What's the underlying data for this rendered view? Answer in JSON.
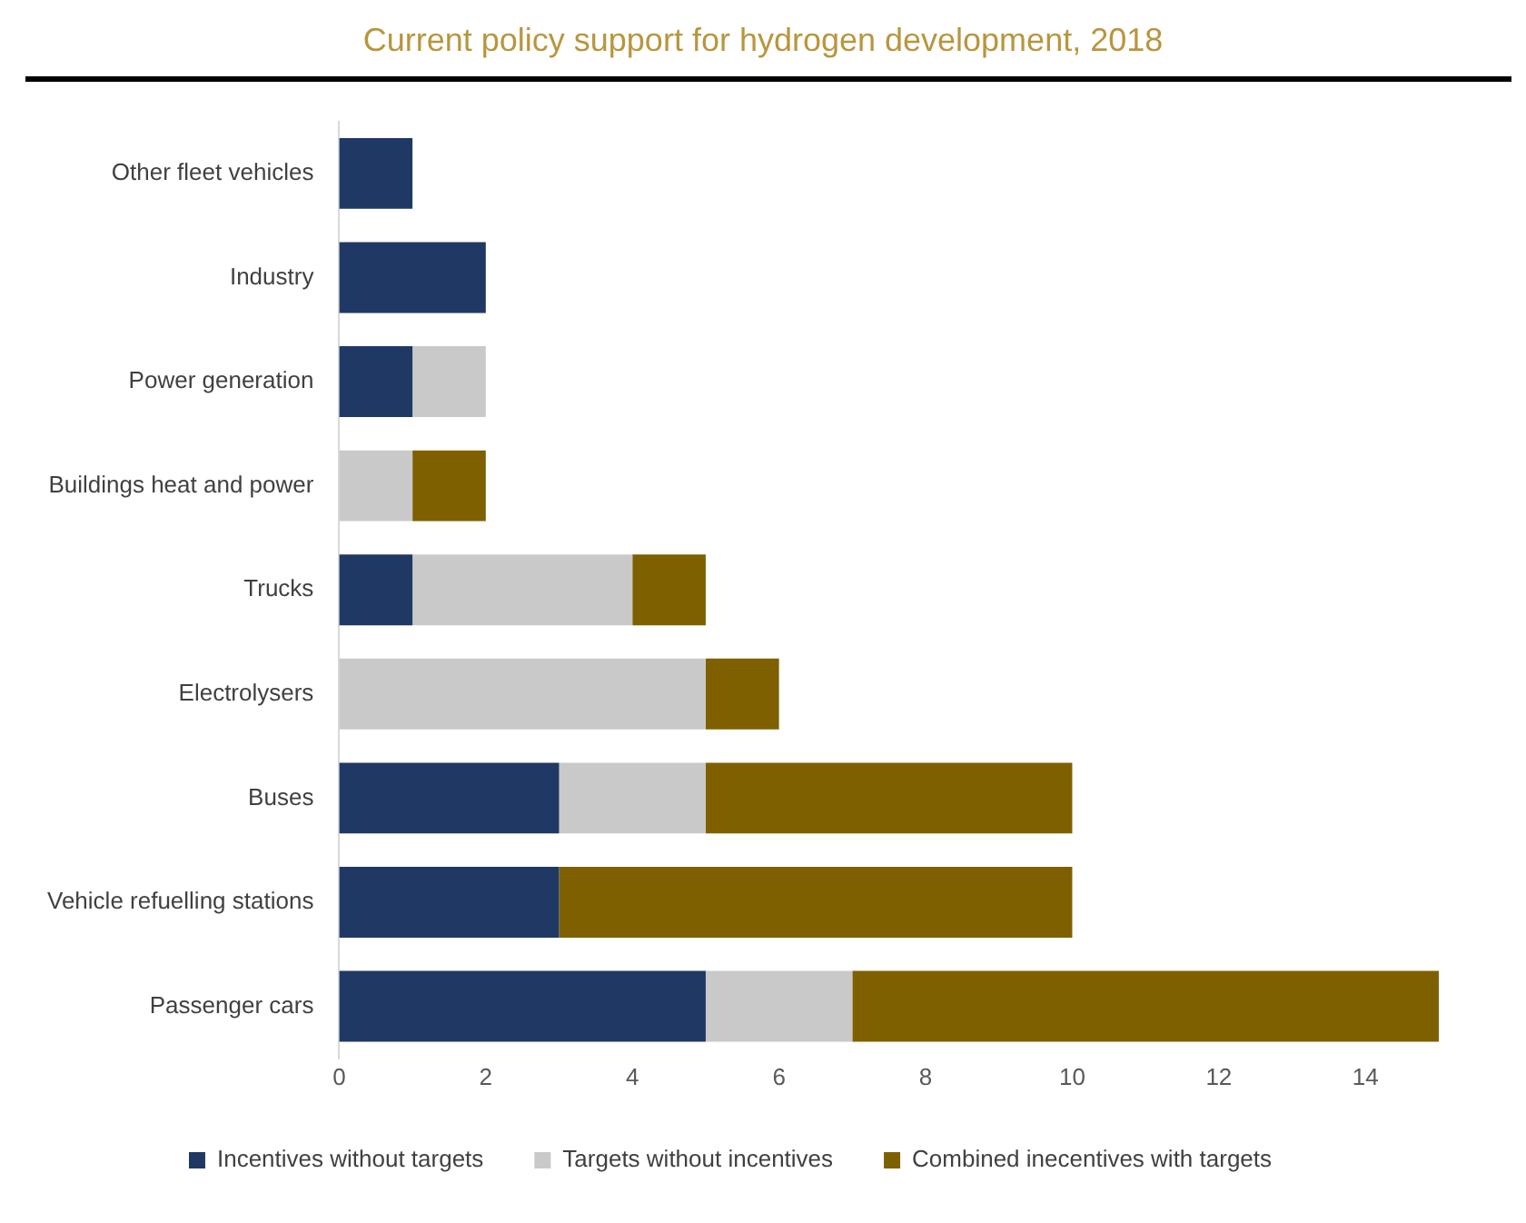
{
  "chart_data": {
    "type": "bar",
    "title": "Current policy support for hydrogen development, 2018",
    "orientation": "horizontal",
    "stacked": true,
    "categories": [
      "Other fleet vehicles",
      "Industry",
      "Power generation",
      "Buildings heat and power",
      "Trucks",
      "Electrolysers",
      "Buses",
      "Vehicle refuelling stations",
      "Passenger cars"
    ],
    "series": [
      {
        "name": "Incentives without targets",
        "color": "#203864",
        "values": [
          1,
          2,
          1,
          0,
          1,
          0,
          3,
          3,
          5
        ]
      },
      {
        "name": "Targets without incentives",
        "color": "#c9c9c9",
        "values": [
          0,
          0,
          1,
          1,
          3,
          5,
          2,
          0,
          2
        ]
      },
      {
        "name": "Combined inecentives with targets",
        "color": "#7f6000",
        "values": [
          0,
          0,
          0,
          1,
          1,
          1,
          5,
          7,
          8
        ]
      }
    ],
    "xlim": [
      0,
      15
    ],
    "xticks": [
      0,
      2,
      4,
      6,
      8,
      10,
      12,
      14
    ],
    "grid": false,
    "legend": "bottom"
  }
}
